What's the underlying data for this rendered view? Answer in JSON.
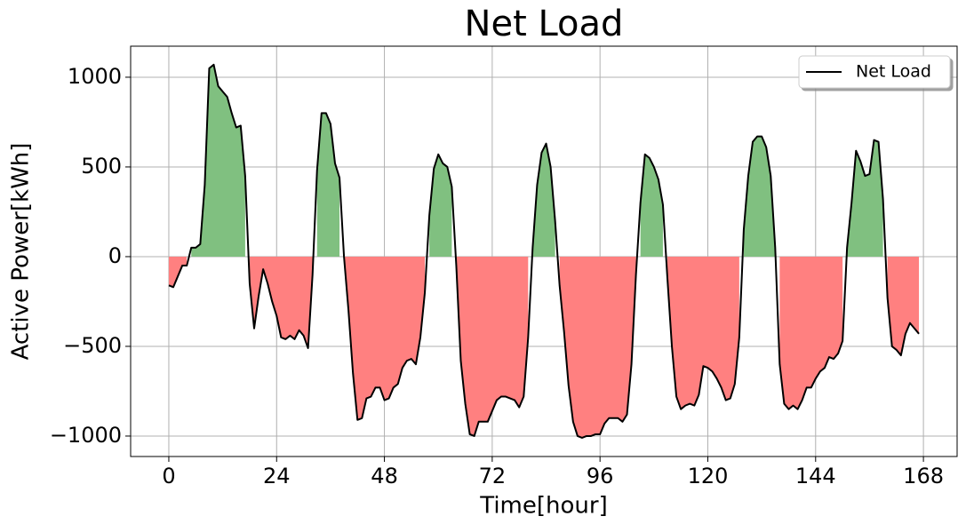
{
  "chart_data": {
    "type": "line",
    "title": "Net Load",
    "xlabel": "Time[hour]",
    "ylabel": "Active Power[kWh]",
    "series": [
      {
        "name": "Net Load",
        "color": "#000000",
        "positive_fill": "#80c080",
        "negative_fill": "#ff8080",
        "values": [
          -160,
          -170,
          -110,
          -50,
          -50,
          50,
          50,
          70,
          400,
          1050,
          1070,
          950,
          920,
          890,
          800,
          720,
          730,
          450,
          -150,
          -400,
          -220,
          -70,
          -150,
          -250,
          -330,
          -450,
          -460,
          -440,
          -460,
          -410,
          -440,
          -510,
          -100,
          480,
          800,
          800,
          740,
          520,
          440,
          0,
          -300,
          -650,
          -910,
          -900,
          -790,
          -780,
          -730,
          -730,
          -800,
          -790,
          -730,
          -710,
          -620,
          -580,
          -570,
          -600,
          -450,
          -200,
          230,
          490,
          570,
          520,
          500,
          390,
          -50,
          -580,
          -820,
          -990,
          -1000,
          -920,
          -920,
          -920,
          -860,
          -800,
          -780,
          -780,
          -790,
          -800,
          -840,
          -780,
          -450,
          50,
          400,
          580,
          630,
          500,
          200,
          -160,
          -420,
          -720,
          -920,
          -1000,
          -1010,
          -1000,
          -1000,
          -990,
          -990,
          -930,
          -900,
          -900,
          -900,
          -920,
          -880,
          -600,
          -100,
          300,
          570,
          550,
          500,
          430,
          290,
          -120,
          -500,
          -780,
          -850,
          -830,
          -820,
          -830,
          -770,
          -610,
          -620,
          -640,
          -680,
          -730,
          -800,
          -790,
          -710,
          -450,
          150,
          450,
          640,
          670,
          670,
          610,
          450,
          50,
          -600,
          -820,
          -850,
          -830,
          -850,
          -800,
          -730,
          -730,
          -680,
          -640,
          -620,
          -560,
          -570,
          -540,
          -470,
          50,
          300,
          590,
          530,
          450,
          460,
          650,
          640,
          320,
          -230,
          -500,
          -520,
          -550,
          -430,
          -370,
          -400,
          -430
        ]
      }
    ],
    "x": [
      0,
      1,
      2,
      3,
      4,
      5,
      6,
      7,
      8,
      9,
      10,
      11,
      12,
      13,
      14,
      15,
      16,
      17,
      18,
      19,
      20,
      21,
      22,
      23,
      24,
      25,
      26,
      27,
      28,
      29,
      30,
      31,
      32,
      33,
      34,
      35,
      36,
      37,
      38,
      39,
      40,
      41,
      42,
      43,
      44,
      45,
      46,
      47,
      48,
      49,
      50,
      51,
      52,
      53,
      54,
      55,
      56,
      57,
      58,
      59,
      60,
      61,
      62,
      63,
      64,
      65,
      66,
      67,
      68,
      69,
      70,
      71,
      72,
      73,
      74,
      75,
      76,
      77,
      78,
      79,
      80,
      81,
      82,
      83,
      84,
      85,
      86,
      87,
      88,
      89,
      90,
      91,
      92,
      93,
      94,
      95,
      96,
      97,
      98,
      99,
      100,
      101,
      102,
      103,
      104,
      105,
      106,
      107,
      108,
      109,
      110,
      111,
      112,
      113,
      114,
      115,
      116,
      117,
      118,
      119,
      120,
      121,
      122,
      123,
      124,
      125,
      126,
      127,
      128,
      129,
      130,
      131,
      132,
      133,
      134,
      135,
      136,
      137,
      138,
      139,
      140,
      141,
      142,
      143,
      144,
      145,
      146,
      147,
      148,
      149,
      150,
      151,
      152,
      153,
      154,
      155,
      156,
      157,
      158,
      159,
      160,
      161,
      162,
      163,
      164,
      165,
      166,
      167
    ],
    "xlim": [
      -8.5,
      175.5
    ],
    "xticks": [
      0,
      24,
      48,
      72,
      96,
      120,
      144,
      168
    ],
    "ylim": [
      -1114,
      1173
    ],
    "yticks": [
      {
        "value": -1000,
        "label": "−1000"
      },
      {
        "value": -500,
        "label": "−500"
      },
      0,
      500,
      1000
    ],
    "grid": true,
    "legend": "upper right"
  }
}
